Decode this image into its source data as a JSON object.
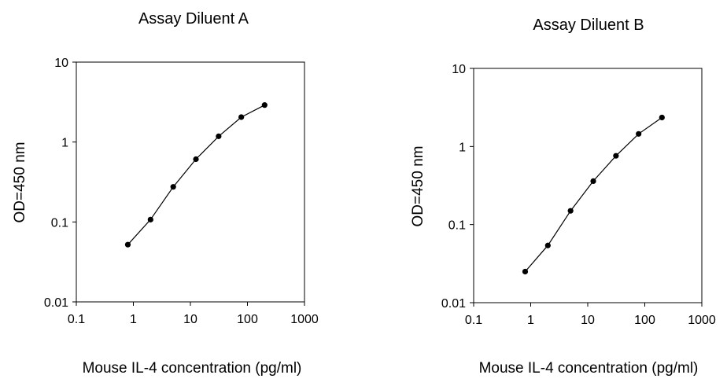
{
  "chart_data": [
    {
      "type": "line",
      "title": "Assay Diluent A",
      "xlabel": "Mouse IL-4 concentration (pg/ml)",
      "ylabel": "OD=450 nm",
      "xscale": "log",
      "yscale": "log",
      "xlim": [
        0.1,
        1000
      ],
      "ylim": [
        0.01,
        10
      ],
      "xticks": [
        "0.1",
        "1",
        "10",
        "100",
        "1000"
      ],
      "yticks": [
        "0.01",
        "0.1",
        "1",
        "10"
      ],
      "grid": false,
      "series": [
        {
          "x": [
            0.8,
            2,
            5,
            12.5,
            31.25,
            78,
            200
          ],
          "y": [
            0.052,
            0.107,
            0.275,
            0.61,
            1.18,
            2.05,
            2.9
          ]
        }
      ]
    },
    {
      "type": "line",
      "title": "Assay Diluent B",
      "xlabel": "Mouse IL-4 concentration (pg/ml)",
      "ylabel": "OD=450 nm",
      "xscale": "log",
      "yscale": "log",
      "xlim": [
        0.1,
        1000
      ],
      "ylim": [
        0.01,
        10
      ],
      "xticks": [
        "0.1",
        "1",
        "10",
        "100",
        "1000"
      ],
      "yticks": [
        "0.01",
        "0.1",
        "1",
        "10"
      ],
      "grid": false,
      "series": [
        {
          "x": [
            0.8,
            2,
            5,
            12.5,
            31.25,
            78,
            200
          ],
          "y": [
            0.025,
            0.054,
            0.15,
            0.36,
            0.76,
            1.45,
            2.35
          ]
        }
      ]
    }
  ]
}
